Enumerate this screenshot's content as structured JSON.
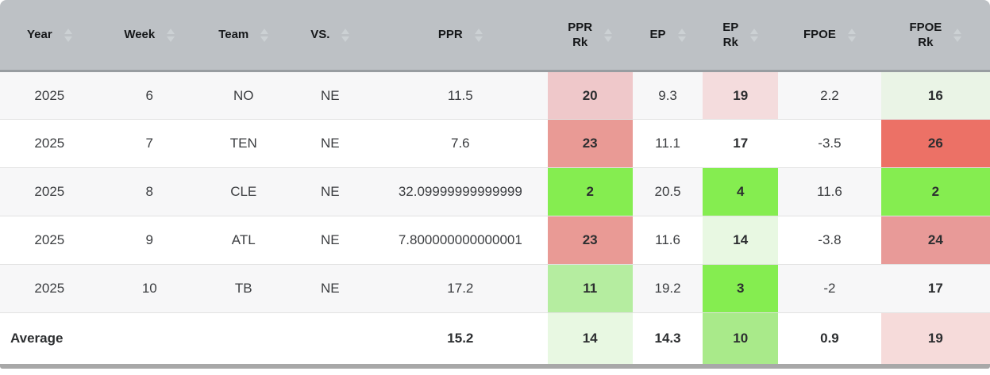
{
  "colors": {
    "header_bg": "#bdc1c5",
    "header_border": "#989da1",
    "sort_arrow": "#ccd1d4",
    "stripe_row": "#f7f7f8",
    "row_border": "#e2e2e2",
    "bottom_bar": "#a8a8a8",
    "rank_green_bright": "#85ed50",
    "rank_green_medium": "#a9ea8a",
    "rank_green_light": "#b5eda0",
    "rank_green_pale": "#e8f8e2",
    "rank_red_strong": "#ec7166",
    "rank_red_medium": "#e99a95",
    "rank_pink_light": "#efc8ca",
    "rank_pink_pale": "#f5dbdb"
  },
  "chart_data": {
    "type": "table",
    "columns": [
      "Year",
      "Week",
      "Team",
      "VS.",
      "PPR",
      "PPR Rk",
      "EP",
      "EP Rk",
      "FPOE",
      "FPOE Rk"
    ],
    "rows": [
      [
        "2025",
        "6",
        "NO",
        "NE",
        "11.5",
        "20",
        "9.3",
        "19",
        "2.2",
        "16"
      ],
      [
        "2025",
        "7",
        "TEN",
        "NE",
        "7.6",
        "23",
        "11.1",
        "17",
        "-3.5",
        "26"
      ],
      [
        "2025",
        "8",
        "CLE",
        "NE",
        "32.09999999999999",
        "2",
        "20.5",
        "4",
        "11.6",
        "2"
      ],
      [
        "2025",
        "9",
        "ATL",
        "NE",
        "7.800000000000001",
        "23",
        "11.6",
        "14",
        "-3.8",
        "24"
      ],
      [
        "2025",
        "10",
        "TB",
        "NE",
        "17.2",
        "11",
        "19.2",
        "3",
        "-2",
        "17"
      ],
      [
        "Average",
        "",
        "",
        "",
        "15.2",
        "14",
        "14.3",
        "10",
        "0.9",
        "19"
      ]
    ]
  },
  "table": {
    "columns": [
      {
        "key": "year",
        "lines": [
          "Year"
        ],
        "width": "10.0%"
      },
      {
        "key": "week",
        "lines": [
          "Week"
        ],
        "width": "10.2%"
      },
      {
        "key": "team",
        "lines": [
          "Team"
        ],
        "width": "8.8%"
      },
      {
        "key": "vs",
        "lines": [
          "VS."
        ],
        "width": "8.7%"
      },
      {
        "key": "ppr",
        "lines": [
          "PPR"
        ],
        "width": "17.6%"
      },
      {
        "key": "ppr-rk",
        "lines": [
          "PPR",
          "Rk"
        ],
        "width": "8.6%"
      },
      {
        "key": "ep",
        "lines": [
          "EP"
        ],
        "width": "7.1%"
      },
      {
        "key": "ep-rk",
        "lines": [
          "EP",
          "Rk"
        ],
        "width": "7.6%"
      },
      {
        "key": "fpoe",
        "lines": [
          "FPOE"
        ],
        "width": "10.4%"
      },
      {
        "key": "fpoe-rk",
        "lines": [
          "FPOE",
          "Rk"
        ],
        "width": "11.0%"
      }
    ],
    "rows": [
      {
        "stripe": true,
        "cells": [
          {
            "v": "2025"
          },
          {
            "v": "6"
          },
          {
            "v": "NO"
          },
          {
            "v": "NE"
          },
          {
            "v": "11.5"
          },
          {
            "v": "20",
            "bg": "#efc8ca",
            "bold": true
          },
          {
            "v": "9.3"
          },
          {
            "v": "19",
            "bg": "#f4dcdd",
            "bold": true
          },
          {
            "v": "2.2"
          },
          {
            "v": "16",
            "bg": "#eaf4e6",
            "bold": true
          }
        ]
      },
      {
        "stripe": false,
        "cells": [
          {
            "v": "2025"
          },
          {
            "v": "7"
          },
          {
            "v": "TEN"
          },
          {
            "v": "NE"
          },
          {
            "v": "7.6"
          },
          {
            "v": "23",
            "bg": "#e99a95",
            "bold": true
          },
          {
            "v": "11.1"
          },
          {
            "v": "17",
            "bold": true
          },
          {
            "v": "-3.5"
          },
          {
            "v": "26",
            "bg": "#ec7166",
            "bold": true
          }
        ]
      },
      {
        "stripe": true,
        "cells": [
          {
            "v": "2025"
          },
          {
            "v": "8"
          },
          {
            "v": "CLE"
          },
          {
            "v": "NE"
          },
          {
            "v": "32.09999999999999"
          },
          {
            "v": "2",
            "bg": "#85ed50",
            "bold": true
          },
          {
            "v": "20.5"
          },
          {
            "v": "4",
            "bg": "#85ed50",
            "bold": true
          },
          {
            "v": "11.6"
          },
          {
            "v": "2",
            "bg": "#85ed50",
            "bold": true
          }
        ]
      },
      {
        "stripe": false,
        "cells": [
          {
            "v": "2025"
          },
          {
            "v": "9"
          },
          {
            "v": "ATL"
          },
          {
            "v": "NE"
          },
          {
            "v": "7.800000000000001"
          },
          {
            "v": "23",
            "bg": "#e99a95",
            "bold": true
          },
          {
            "v": "11.6"
          },
          {
            "v": "14",
            "bg": "#e8f8e2",
            "bold": true
          },
          {
            "v": "-3.8"
          },
          {
            "v": "24",
            "bg": "#e89a98",
            "bold": true
          }
        ]
      },
      {
        "stripe": true,
        "cells": [
          {
            "v": "2025"
          },
          {
            "v": "10"
          },
          {
            "v": "TB"
          },
          {
            "v": "NE"
          },
          {
            "v": "17.2"
          },
          {
            "v": "11",
            "bg": "#b5eda0",
            "bold": true
          },
          {
            "v": "19.2"
          },
          {
            "v": "3",
            "bg": "#85ed50",
            "bold": true
          },
          {
            "v": "-2"
          },
          {
            "v": "17",
            "bold": true
          }
        ]
      },
      {
        "stripe": false,
        "average": true,
        "cells": [
          {
            "v": "Average",
            "bold": true,
            "align": "left"
          },
          {
            "v": ""
          },
          {
            "v": ""
          },
          {
            "v": ""
          },
          {
            "v": "15.2",
            "bold": true
          },
          {
            "v": "14",
            "bg": "#e8f8e2",
            "bold": true
          },
          {
            "v": "14.3",
            "bold": true
          },
          {
            "v": "10",
            "bg": "#a9ea8a",
            "bold": true
          },
          {
            "v": "0.9",
            "bold": true
          },
          {
            "v": "19",
            "bg": "#f6dbda",
            "bold": true
          }
        ]
      }
    ]
  }
}
